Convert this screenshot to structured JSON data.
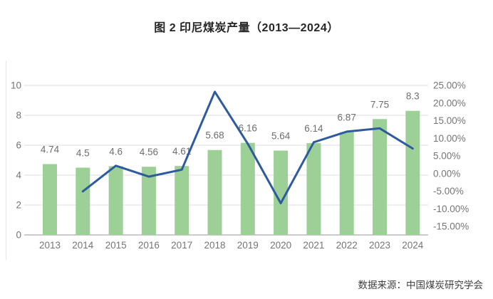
{
  "title": "图 2 印尼煤炭产量（2013—2024）",
  "source_note": "数据来源：中国煤炭研究学会",
  "colors": {
    "bar": "#9CD096",
    "line": "#2E5B9E",
    "grid": "#DCDCDC",
    "axis": "#ACACAC",
    "tick_text": "#757575",
    "data_label_text": "#6E6E6E",
    "title_text": "#262626",
    "source_text": "#3F3F3F",
    "frame_line": "#E3E6E8",
    "background": "#FFFFFF"
  },
  "chart_data": {
    "type": "bar",
    "subtype": "combo-bar-line-dual-axis",
    "title": "图 2 印尼煤炭产量（2013—2024）",
    "categories": [
      "2013",
      "2014",
      "2015",
      "2016",
      "2017",
      "2018",
      "2019",
      "2020",
      "2021",
      "2022",
      "2023",
      "2024"
    ],
    "series": [
      {
        "id": "coal-output-bars",
        "chart_type": "bar",
        "axis": "left",
        "values": [
          4.74,
          4.5,
          4.6,
          4.56,
          4.61,
          5.68,
          6.16,
          5.64,
          6.14,
          6.87,
          7.75,
          8.3
        ],
        "data_labels": [
          "4.74",
          "4.5",
          "4.6",
          "4.56",
          "4.61",
          "5.68",
          "6.16",
          "5.64",
          "6.14",
          "6.87",
          "7.75",
          "8.3"
        ]
      },
      {
        "id": "yoy-growth-line",
        "chart_type": "line",
        "axis": "right",
        "values": [
          null,
          -5.06,
          2.22,
          -0.87,
          1.1,
          23.21,
          8.45,
          -8.44,
          8.87,
          11.89,
          12.81,
          7.1
        ]
      }
    ],
    "left_axis": {
      "min": 0,
      "max": 10,
      "tick_labels": [
        "10",
        "8",
        "6",
        "4",
        "2",
        "0"
      ],
      "tick_values": [
        10,
        8,
        6,
        4,
        2,
        0
      ]
    },
    "right_axis": {
      "max_label_value": 25,
      "tick_labels": [
        "25.00%",
        "20.00%",
        "15.00%",
        "10.00%",
        "5.00%",
        "0.00%",
        "-5.00%",
        "-10.00%",
        "-15.00%"
      ]
    },
    "grid": true,
    "legend": false
  }
}
